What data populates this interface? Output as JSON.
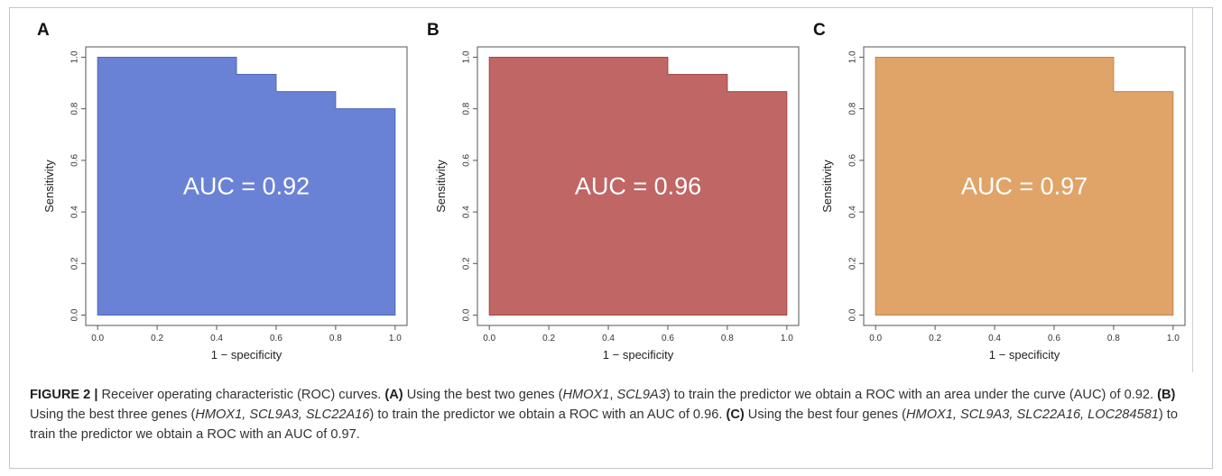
{
  "chart_data": [
    {
      "type": "area",
      "panel": "A",
      "fill_color": "#6a82d6",
      "stroke_color": "#4f66b8",
      "x": [
        0.0,
        0.4667,
        0.4667,
        0.6,
        0.6,
        0.8,
        0.8,
        1.0
      ],
      "y": [
        1.0,
        1.0,
        0.9333,
        0.9333,
        0.8667,
        0.8667,
        0.8,
        0.8
      ],
      "annotation": "AUC = 0.92",
      "xlabel": "1 − specificity",
      "ylabel": "Sensitivity",
      "xlim": [
        0,
        1
      ],
      "ylim": [
        0,
        1
      ],
      "xticks": [
        "0.0",
        "0.2",
        "0.4",
        "0.6",
        "0.8",
        "1.0"
      ],
      "yticks": [
        "0.0",
        "0.2",
        "0.4",
        "0.6",
        "0.8",
        "1.0"
      ],
      "grid": false
    },
    {
      "type": "area",
      "panel": "B",
      "fill_color": "#c06664",
      "stroke_color": "#a04a48",
      "x": [
        0.0,
        0.6,
        0.6,
        0.8,
        0.8,
        1.0
      ],
      "y": [
        1.0,
        1.0,
        0.9333,
        0.9333,
        0.8667,
        0.8667
      ],
      "annotation": "AUC = 0.96",
      "xlabel": "1 − specificity",
      "ylabel": "Sensitivity",
      "xlim": [
        0,
        1
      ],
      "ylim": [
        0,
        1
      ],
      "xticks": [
        "0.0",
        "0.2",
        "0.4",
        "0.6",
        "0.8",
        "1.0"
      ],
      "yticks": [
        "0.0",
        "0.2",
        "0.4",
        "0.6",
        "0.8",
        "1.0"
      ],
      "grid": false
    },
    {
      "type": "area",
      "panel": "C",
      "fill_color": "#e0a468",
      "stroke_color": "#c0854c",
      "x": [
        0.0,
        0.8,
        0.8,
        1.0
      ],
      "y": [
        1.0,
        1.0,
        0.8667,
        0.8667
      ],
      "annotation": "AUC = 0.97",
      "xlabel": "1 − specificity",
      "ylabel": "Sensitivity",
      "xlim": [
        0,
        1
      ],
      "ylim": [
        0,
        1
      ],
      "xticks": [
        "0.0",
        "0.2",
        "0.4",
        "0.6",
        "0.8",
        "1.0"
      ],
      "yticks": [
        "0.0",
        "0.2",
        "0.4",
        "0.6",
        "0.8",
        "1.0"
      ],
      "grid": false
    }
  ],
  "caption": {
    "label": "FIGURE 2 |",
    "title": " Receiver operating characteristic (ROC) curves. ",
    "a": {
      "tag": "(A)",
      "pre": " Using the best two genes (",
      "genes": "HMOX1",
      "sep": ", ",
      "genes2": "SCL9A3",
      "post": ") to train the predictor we obtain a ROC with an area under the curve (AUC) of 0.92. "
    },
    "b": {
      "tag": "(B)",
      "pre": " Using the best three genes (",
      "genes": "HMOX1, SCL9A3, SLC22A16",
      "post": ") to train the predictor we obtain a ROC with an AUC of 0.96. "
    },
    "c": {
      "tag": "(C)",
      "pre": " Using the best four genes (",
      "genes": "HMOX1, SCL9A3, SLC22A16, LOC284581",
      "post": ") to train the predictor we obtain a ROC with an AUC of 0.97."
    }
  }
}
